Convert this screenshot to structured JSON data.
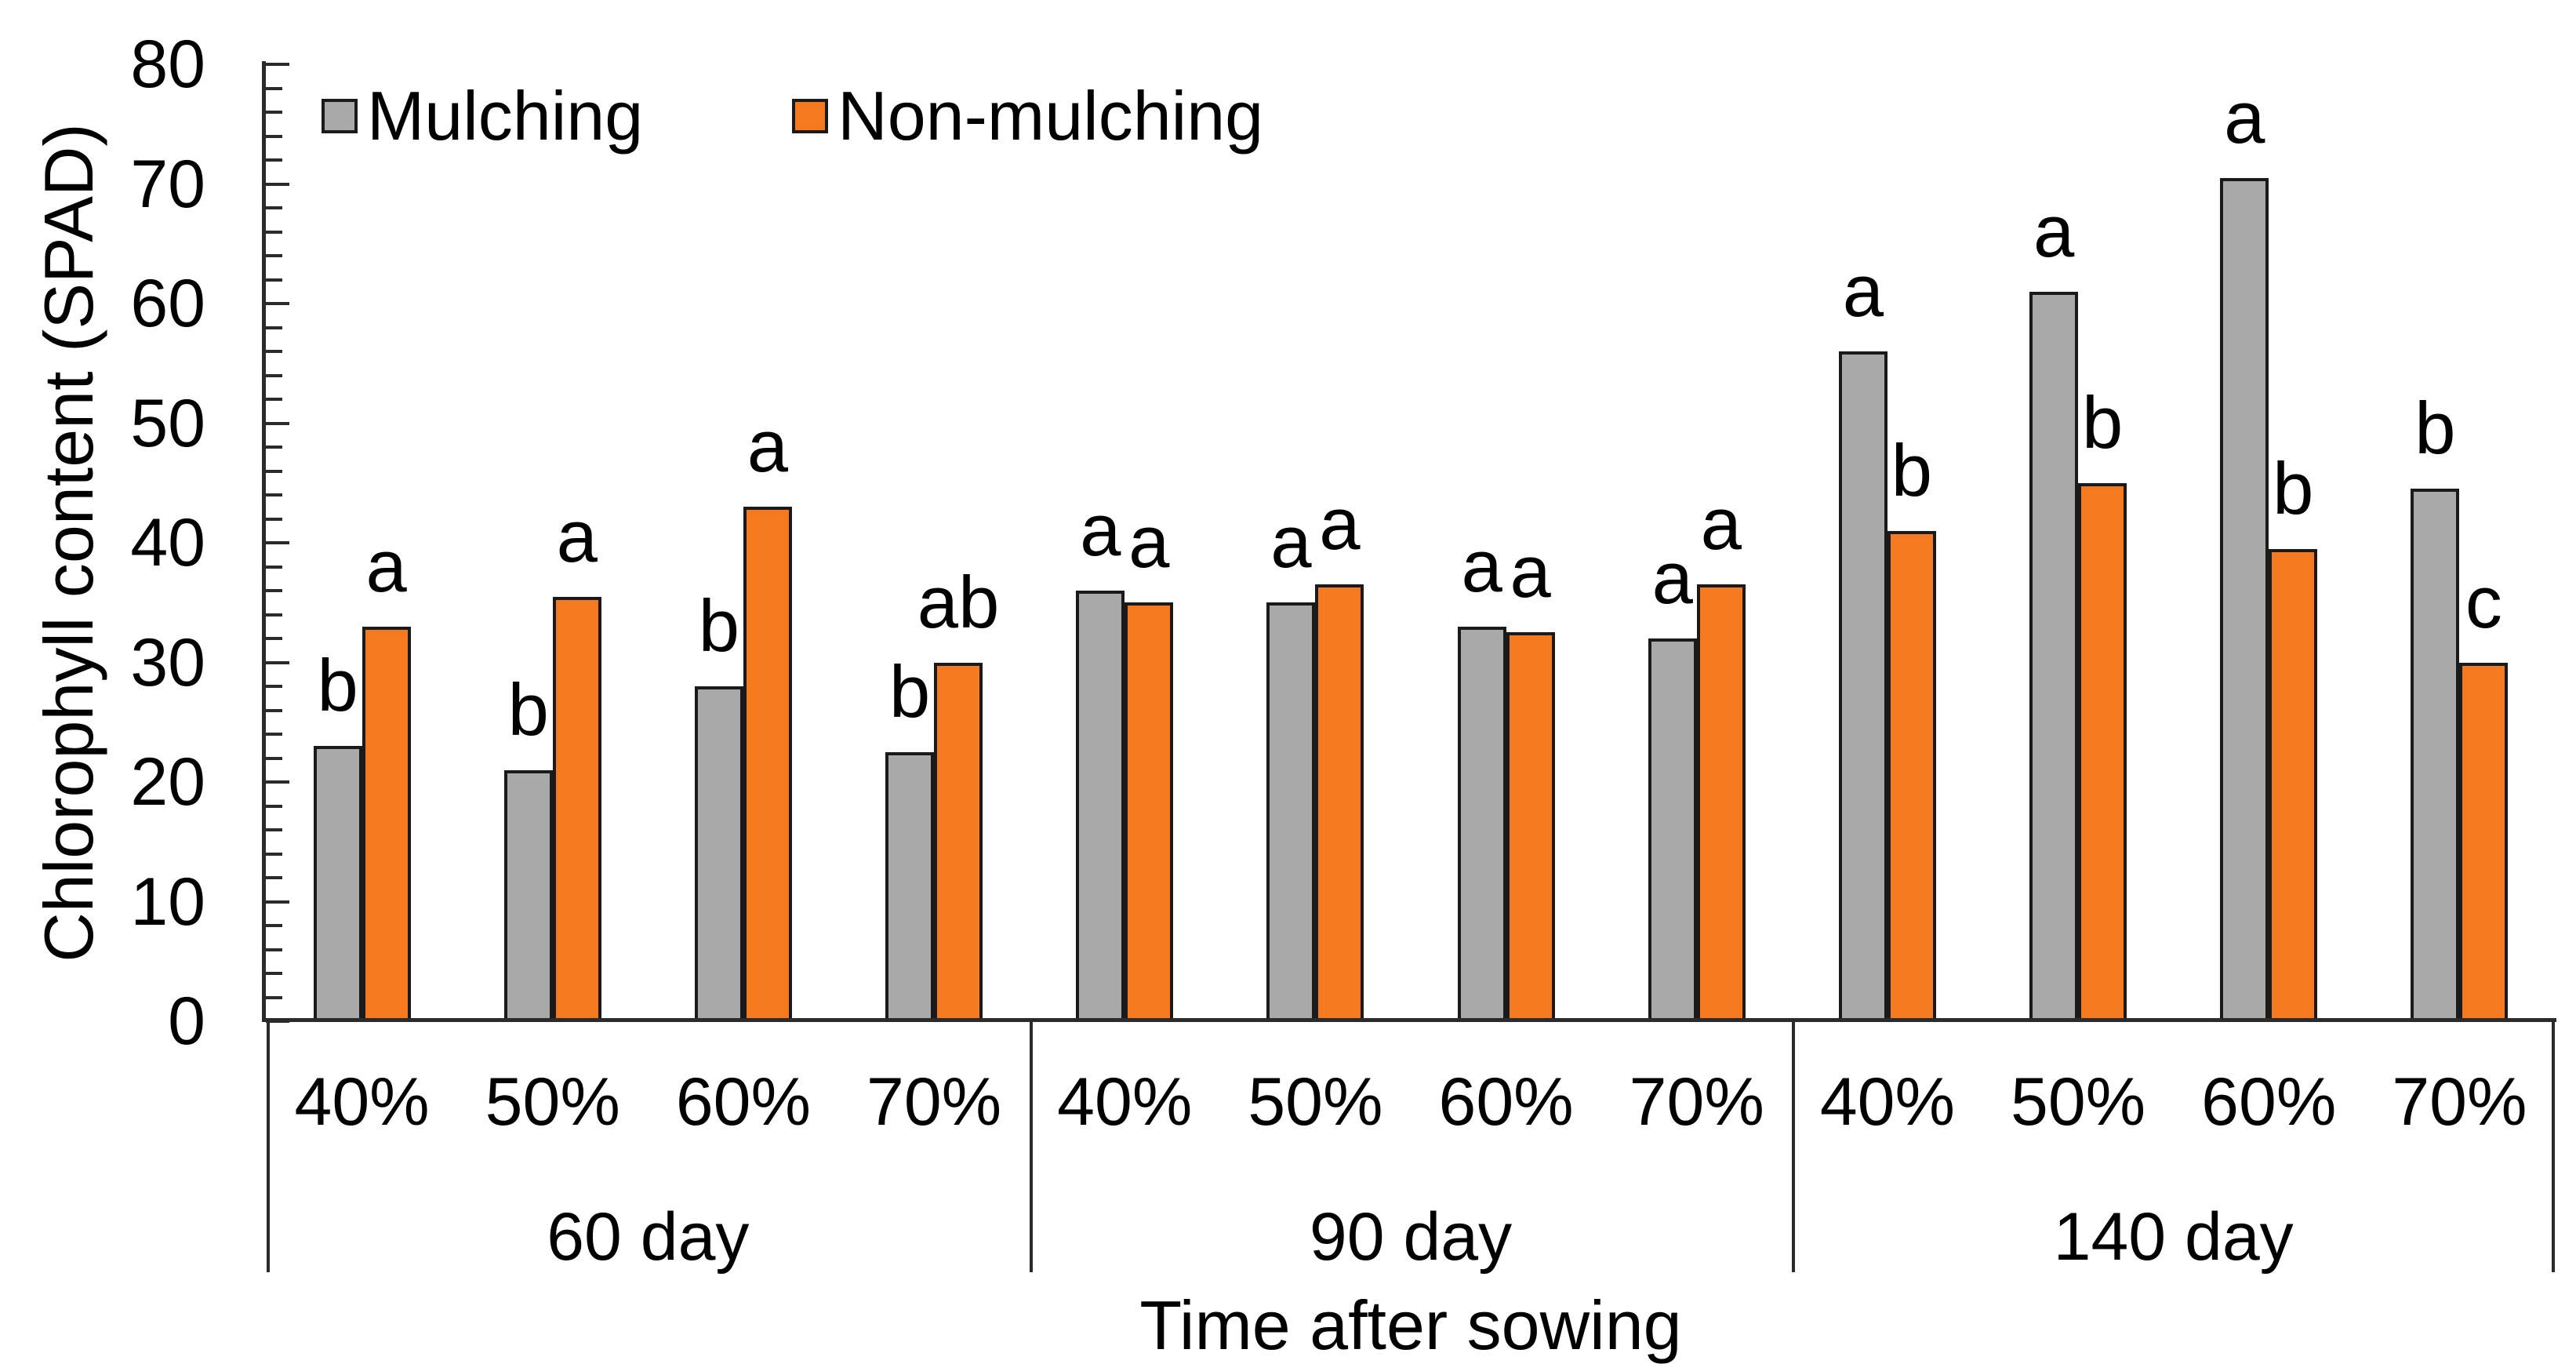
{
  "figure": {
    "y_axis_label": "Chlorophyll content (SPAD)",
    "x_axis_label": "Time after sowing",
    "y_tick_labels": [
      "80",
      "70",
      "60",
      "50",
      "40",
      "30",
      "20",
      "10",
      "0"
    ]
  },
  "legend": {
    "items": [
      {
        "label": "Mulching",
        "color": "#A9A9A9"
      },
      {
        "label": "Non-mulching",
        "color": "#F4791F"
      }
    ]
  },
  "chart_data": {
    "type": "bar",
    "title": "",
    "xlabel": "Time after sowing",
    "ylabel": "Chlorophyll content (SPAD)",
    "ylim": [
      0,
      80
    ],
    "y_major_step": 10,
    "y_minor_step": 2,
    "grid": false,
    "legend_position": "top-left-inside",
    "categories": [
      "40%",
      "50%",
      "60%",
      "70%"
    ],
    "groups": [
      {
        "label": "60 day",
        "series": [
          {
            "name": "Mulching",
            "values": [
              23,
              21,
              28,
              22.5
            ],
            "sig_letters": [
              "b",
              "b",
              "b",
              "b"
            ]
          },
          {
            "name": "Non-mulching",
            "values": [
              33,
              35.5,
              43,
              30
            ],
            "sig_letters": [
              "a",
              "a",
              "a",
              "ab"
            ]
          }
        ]
      },
      {
        "label": "90 day",
        "series": [
          {
            "name": "Mulching",
            "values": [
              36,
              35,
              33,
              32
            ],
            "sig_letters": [
              "a",
              "a",
              "a",
              "a"
            ]
          },
          {
            "name": "Non-mulching",
            "values": [
              35,
              36.5,
              32.5,
              36.5
            ],
            "sig_letters": [
              "a",
              "a",
              "a",
              "a"
            ]
          }
        ]
      },
      {
        "label": "140 day",
        "series": [
          {
            "name": "Mulching",
            "values": [
              56,
              61,
              70.5,
              44.5
            ],
            "sig_letters": [
              "a",
              "a",
              "a",
              "b"
            ]
          },
          {
            "name": "Non-mulching",
            "values": [
              41,
              45,
              39.5,
              30
            ],
            "sig_letters": [
              "b",
              "b",
              "b",
              "c"
            ]
          }
        ]
      }
    ],
    "series_colors": [
      {
        "name": "Mulching",
        "fill": "#A9A9A9"
      },
      {
        "name": "Non-mulching",
        "fill": "#F4791F"
      }
    ]
  }
}
